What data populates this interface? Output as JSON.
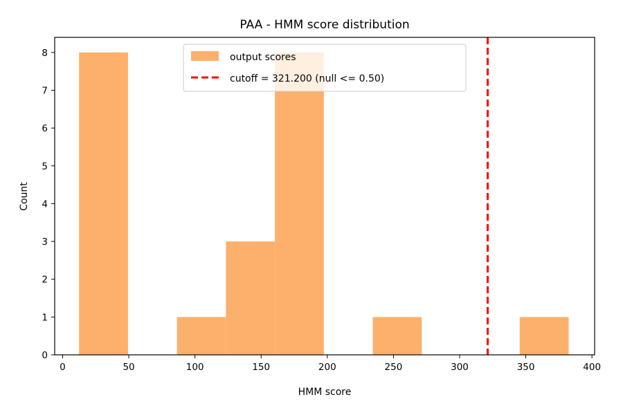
{
  "chart_data": {
    "type": "bar",
    "title": "PAA - HMM score distribution",
    "xlabel": "HMM score",
    "ylabel": "Count",
    "xlim": [
      -6,
      402
    ],
    "ylim": [
      0,
      8.4
    ],
    "xticks": [
      0,
      50,
      100,
      150,
      200,
      250,
      300,
      350,
      400
    ],
    "yticks": [
      0,
      1,
      2,
      3,
      4,
      5,
      6,
      7,
      8
    ],
    "grid": false,
    "legend_position": "upper center",
    "bar_color": "#fdb06c",
    "histogram": {
      "name": "output scores",
      "bins": [
        {
          "x0": 12.4,
          "x1": 49.4,
          "count": 8
        },
        {
          "x0": 49.4,
          "x1": 86.4,
          "count": 0
        },
        {
          "x0": 86.4,
          "x1": 123.4,
          "count": 1
        },
        {
          "x0": 123.4,
          "x1": 160.4,
          "count": 3
        },
        {
          "x0": 160.4,
          "x1": 197.4,
          "count": 8
        },
        {
          "x0": 197.4,
          "x1": 234.4,
          "count": 0
        },
        {
          "x0": 234.4,
          "x1": 271.4,
          "count": 1
        },
        {
          "x0": 271.4,
          "x1": 308.4,
          "count": 0
        },
        {
          "x0": 308.4,
          "x1": 345.4,
          "count": 0
        },
        {
          "x0": 345.4,
          "x1": 382.4,
          "count": 1
        }
      ]
    },
    "cutoff": {
      "name": "cutoff = 321.200 (null <= 0.50)",
      "value": 321.2,
      "color": "#ff0000"
    }
  }
}
